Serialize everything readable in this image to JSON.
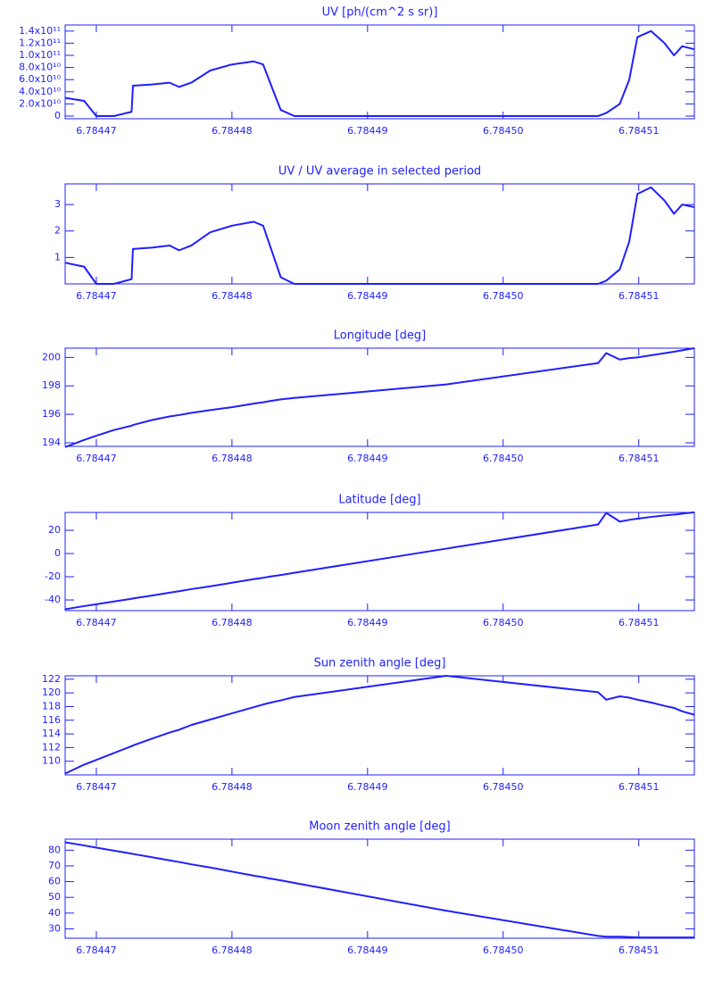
{
  "chart_data": [
    {
      "type": "line",
      "title": "UV [ph/(cm^2 s sr)]",
      "color": "#1f1fff",
      "x": [
        6.7844677,
        6.7844691,
        6.78447,
        6.7844713,
        6.7844726,
        6.7844727,
        6.7844741,
        6.7844754,
        6.7844761,
        6.784477,
        6.7844784,
        6.78448,
        6.7844816,
        6.7844823,
        6.7844829,
        6.7844836,
        6.7844846,
        6.7844958,
        6.784507,
        6.7845076,
        6.7845086,
        6.7845093,
        6.7845099,
        6.7845109,
        6.7845119,
        6.7845126,
        6.7845132,
        6.7845141
      ],
      "values": [
        30000000000,
        25000000000,
        0,
        0,
        7000000000,
        50000000000,
        52000000000,
        55000000000,
        48000000000,
        55000000000,
        75000000000,
        85000000000,
        90000000000,
        85000000000,
        50000000000,
        10000000000,
        0,
        0,
        0,
        5000000000,
        20000000000,
        60000000000,
        130000000000,
        140000000000,
        120000000000,
        100000000000,
        115000000000,
        110000000000
      ],
      "xlim": [
        6.7844677,
        6.7845141
      ],
      "xticks": [
        6.78447,
        6.78448,
        6.78449,
        {
          "value": 6.7845,
          "label": "6.78450"
        },
        6.78451
      ],
      "ylim": [
        -4400000000,
        150000000000
      ],
      "yticks": [
        0,
        {
          "value": 20000000000,
          "label": "2.0x10¹⁰"
        },
        {
          "value": 40000000000,
          "label": "4.0x10¹⁰"
        },
        {
          "value": 60000000000,
          "label": "6.0x10¹⁰"
        },
        {
          "value": 80000000000,
          "label": "8.0x10¹⁰"
        },
        {
          "value": 100000000000,
          "label": "1.0x10¹¹"
        },
        {
          "value": 120000000000,
          "label": "1.2x10¹¹"
        },
        {
          "value": 140000000000,
          "label": "1.4x10¹¹"
        }
      ]
    },
    {
      "type": "line",
      "title": "UV / UV average in selected period",
      "color": "#1f1fff",
      "x": [
        6.7844677,
        6.7844691,
        6.78447,
        6.7844713,
        6.7844726,
        6.7844727,
        6.7844741,
        6.7844754,
        6.7844761,
        6.784477,
        6.7844784,
        6.78448,
        6.7844816,
        6.7844823,
        6.7844829,
        6.7844836,
        6.7844846,
        6.7844958,
        6.784507,
        6.7845076,
        6.7845086,
        6.7845093,
        6.7845099,
        6.7845109,
        6.7845119,
        6.7845126,
        6.7845132,
        6.7845141
      ],
      "values": [
        0.8,
        0.65,
        0,
        0,
        0.18,
        1.32,
        1.37,
        1.45,
        1.27,
        1.45,
        1.95,
        2.2,
        2.35,
        2.2,
        1.3,
        0.25,
        0,
        0,
        0,
        0.12,
        0.55,
        1.6,
        3.4,
        3.65,
        3.15,
        2.65,
        3.0,
        2.9
      ],
      "xlim": [
        6.7844677,
        6.7845141
      ],
      "xticks": [
        6.78447,
        6.78448,
        6.78449,
        {
          "value": 6.7845,
          "label": "6.78450"
        },
        6.78451
      ],
      "ylim": [
        0,
        3.78
      ],
      "yticks": [
        1,
        2,
        3
      ]
    },
    {
      "type": "line",
      "title": "Longitude [deg]",
      "color": "#1f1fff",
      "x": [
        6.7844677,
        6.7844691,
        6.78447,
        6.7844713,
        6.7844726,
        6.7844727,
        6.7844741,
        6.7844754,
        6.7844761,
        6.784477,
        6.7844784,
        6.78448,
        6.7844816,
        6.7844823,
        6.7844829,
        6.7844836,
        6.7844846,
        6.7844958,
        6.784507,
        6.7845076,
        6.7845086,
        6.7845093,
        6.7845099,
        6.7845109,
        6.7845119,
        6.7845126,
        6.7845132,
        6.7845141
      ],
      "values": [
        193.7,
        194.2,
        194.5,
        194.9,
        195.2,
        195.25,
        195.6,
        195.85,
        195.95,
        196.1,
        196.3,
        196.5,
        196.75,
        196.85,
        196.95,
        197.05,
        197.15,
        198.1,
        199.6,
        200.3,
        199.85,
        199.95,
        200.0,
        200.15,
        200.3,
        200.4,
        200.5,
        200.65
      ],
      "xlim": [
        6.7844677,
        6.7845141
      ],
      "xticks": [
        6.78447,
        6.78448,
        6.78449,
        {
          "value": 6.7845,
          "label": "6.78450"
        },
        6.78451
      ],
      "ylim": [
        193.75,
        200.65
      ],
      "yticks": [
        194,
        196,
        198,
        200
      ]
    },
    {
      "type": "line",
      "title": "Latitude [deg]",
      "color": "#1f1fff",
      "x": [
        6.7844677,
        6.7844691,
        6.78447,
        6.7844713,
        6.7844726,
        6.7844727,
        6.7844741,
        6.7844754,
        6.7844761,
        6.784477,
        6.7844784,
        6.78448,
        6.7844816,
        6.7844823,
        6.7844829,
        6.7844836,
        6.7844846,
        6.7844958,
        6.784507,
        6.7845076,
        6.7845086,
        6.7845093,
        6.7845099,
        6.7845109,
        6.7845119,
        6.7845126,
        6.7845132,
        6.7845141
      ],
      "values": [
        -48,
        -45.3,
        -43.7,
        -41.3,
        -39,
        -38.7,
        -36.2,
        -33.7,
        -32.5,
        -30.7,
        -28.2,
        -25.2,
        -22.1,
        -20.9,
        -19.7,
        -18.5,
        -16.6,
        4.2,
        25,
        35,
        27.5,
        29,
        30,
        31.5,
        32.8,
        33.5,
        34.3,
        35.5
      ],
      "xlim": [
        6.7844677,
        6.7845141
      ],
      "xticks": [
        6.78447,
        6.78448,
        6.78449,
        {
          "value": 6.7845,
          "label": "6.78450"
        },
        6.78451
      ],
      "ylim": [
        -49.2,
        35.4
      ],
      "yticks": [
        -40,
        -20,
        0,
        20
      ]
    },
    {
      "type": "line",
      "title": "Sun zenith angle [deg]",
      "color": "#1f1fff",
      "x": [
        6.7844677,
        6.7844691,
        6.78447,
        6.7844713,
        6.7844726,
        6.7844727,
        6.7844741,
        6.7844754,
        6.7844761,
        6.784477,
        6.7844784,
        6.78448,
        6.7844816,
        6.7844823,
        6.7844829,
        6.7844836,
        6.7844846,
        6.7844958,
        6.784507,
        6.7845076,
        6.7845086,
        6.7845093,
        6.7845099,
        6.7845109,
        6.7845119,
        6.7845126,
        6.7845132,
        6.7845141
      ],
      "values": [
        108.2,
        109.5,
        110.2,
        111.2,
        112.2,
        112.3,
        113.3,
        114.2,
        114.6,
        115.3,
        116.1,
        117.0,
        117.9,
        118.3,
        118.6,
        118.9,
        119.4,
        122.5,
        120.1,
        119,
        119.5,
        119.3,
        119,
        118.6,
        118.1,
        117.8,
        117.3,
        116.8
      ],
      "xlim": [
        6.7844677,
        6.7845141
      ],
      "xticks": [
        6.78447,
        6.78448,
        6.78449,
        {
          "value": 6.7845,
          "label": "6.78450"
        },
        6.78451
      ],
      "ylim": [
        108,
        122.5
      ],
      "yticks": [
        110,
        112,
        114,
        116,
        118,
        120,
        122
      ]
    },
    {
      "type": "line",
      "title": "Moon zenith angle [deg]",
      "color": "#1f1fff",
      "x": [
        6.7844677,
        6.7844691,
        6.78447,
        6.7844713,
        6.7844726,
        6.7844727,
        6.7844741,
        6.7844754,
        6.7844761,
        6.784477,
        6.7844784,
        6.78448,
        6.7844816,
        6.7844823,
        6.7844829,
        6.7844836,
        6.7844846,
        6.7844958,
        6.784507,
        6.7845076,
        6.7845086,
        6.7845093,
        6.7845099,
        6.7845109,
        6.7845119,
        6.7845126,
        6.7845132,
        6.7845141
      ],
      "values": [
        85,
        83,
        81.6,
        79.7,
        77.8,
        77.6,
        75.5,
        73.5,
        72.5,
        71,
        69,
        66.4,
        63.8,
        62.8,
        61.8,
        60.8,
        59.2,
        41.5,
        25.5,
        25,
        25,
        24.8,
        24.6,
        24.5,
        24.5,
        24.5,
        24.5,
        24.5
      ],
      "xlim": [
        6.7844677,
        6.7845141
      ],
      "xticks": [
        6.78447,
        6.78448,
        6.78449,
        {
          "value": 6.7845,
          "label": "6.78450"
        },
        6.78451
      ],
      "ylim": [
        24,
        87
      ],
      "yticks": [
        30,
        40,
        50,
        60,
        70,
        80
      ]
    }
  ]
}
